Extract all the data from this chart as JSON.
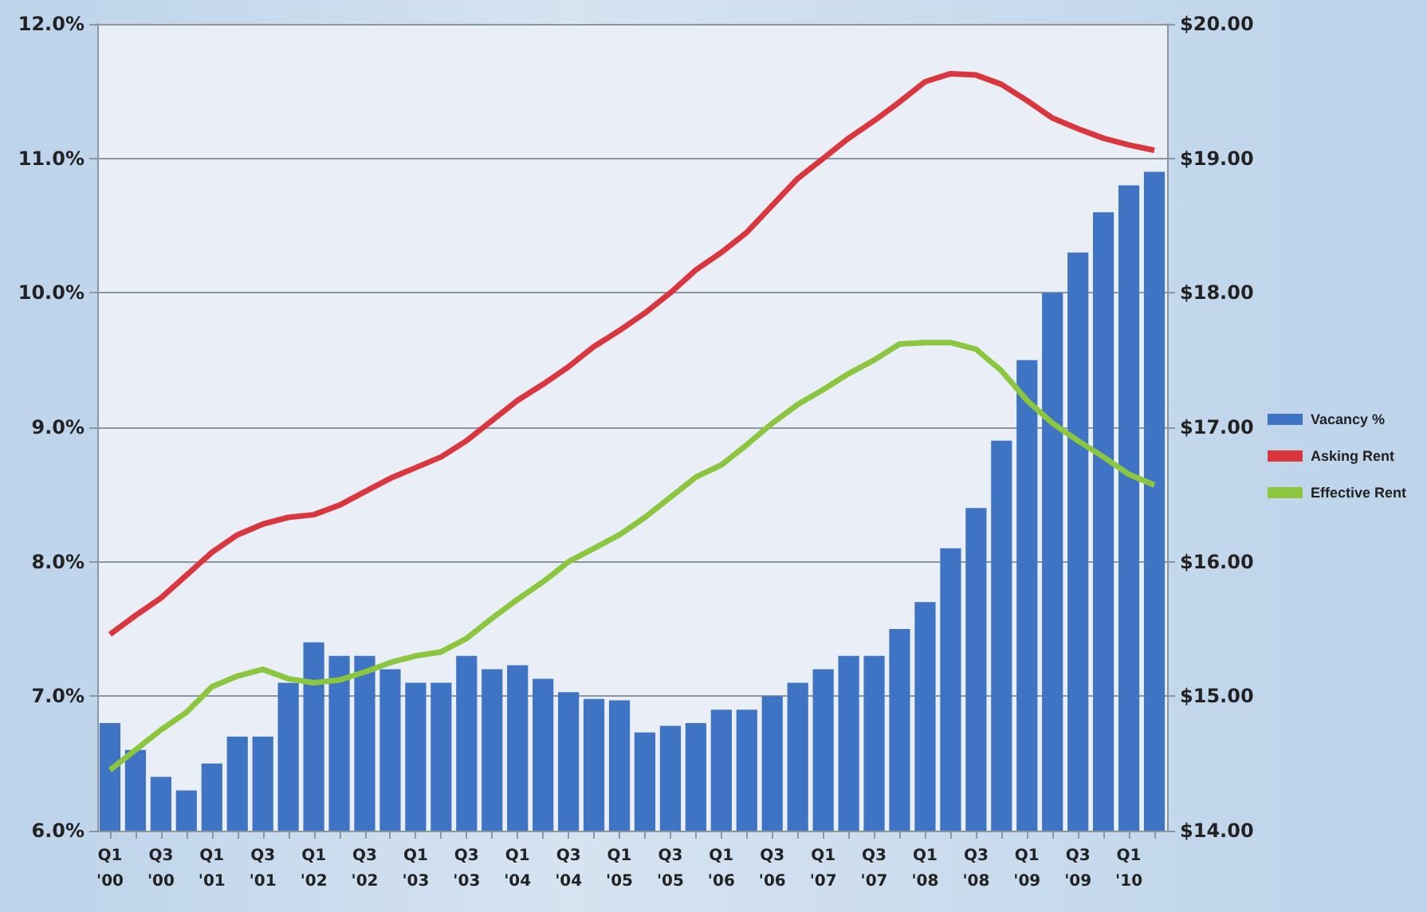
{
  "chart_data": {
    "type": "bar",
    "categories": [
      "Q1\n'00",
      null,
      "Q3\n'00",
      null,
      "Q1\n'01",
      null,
      "Q3\n'01",
      null,
      "Q1\n'02",
      null,
      "Q3\n'02",
      null,
      "Q1\n'03",
      null,
      "Q3\n'03",
      null,
      "Q1\n'04",
      null,
      "Q3\n'04",
      null,
      "Q1\n'05",
      null,
      "Q3\n'05",
      null,
      "Q1\n'06",
      null,
      "Q3\n'06",
      null,
      "Q1\n'07",
      null,
      "Q3\n'07",
      null,
      "Q1\n'08",
      null,
      "Q3\n'08",
      null,
      "Q1\n'09",
      null,
      "Q3\n'09",
      null,
      "Q1\n'10",
      null
    ],
    "series": [
      {
        "name": "Vacancy %",
        "color": "#3f74c4",
        "values": [
          6.8,
          6.6,
          6.4,
          6.3,
          6.5,
          6.7,
          6.7,
          7.1,
          7.4,
          7.3,
          7.3,
          7.2,
          7.1,
          7.1,
          7.3,
          7.2,
          7.23,
          7.13,
          7.03,
          6.98,
          6.97,
          6.73,
          6.78,
          6.8,
          6.9,
          6.9,
          7.0,
          7.1,
          7.2,
          7.3,
          7.3,
          7.5,
          7.7,
          8.1,
          8.4,
          8.9,
          9.5,
          10.0,
          10.3,
          10.6,
          10.8,
          10.9
        ]
      },
      {
        "name": "Asking Rent",
        "type": "line",
        "axis": "y2",
        "color": "#d9363e",
        "values": [
          15.46,
          15.6,
          15.73,
          15.9,
          16.07,
          16.2,
          16.28,
          16.33,
          16.35,
          16.42,
          16.52,
          16.62,
          16.7,
          16.78,
          16.9,
          17.05,
          17.2,
          17.32,
          17.45,
          17.6,
          17.72,
          17.85,
          18.0,
          18.17,
          18.3,
          18.45,
          18.65,
          18.85,
          19.0,
          19.15,
          19.28,
          19.42,
          19.57,
          19.63,
          19.62,
          19.55,
          19.43,
          19.3,
          19.22,
          19.15,
          19.1,
          19.06
        ]
      },
      {
        "name": "Effective Rent",
        "type": "line",
        "axis": "y2",
        "color": "#8cc63f",
        "values": [
          14.45,
          14.6,
          14.75,
          14.88,
          15.07,
          15.15,
          15.2,
          15.13,
          15.1,
          15.12,
          15.18,
          15.25,
          15.3,
          15.33,
          15.43,
          15.58,
          15.72,
          15.85,
          16.0,
          16.1,
          16.2,
          16.33,
          16.48,
          16.63,
          16.72,
          16.87,
          17.03,
          17.17,
          17.28,
          17.4,
          17.5,
          17.62,
          17.63,
          17.63,
          17.58,
          17.42,
          17.2,
          17.03,
          16.9,
          16.78,
          16.65,
          16.57
        ]
      }
    ],
    "ylim": [
      6,
      12
    ],
    "yticks": [
      {
        "value": 6,
        "label": "6.0%"
      },
      {
        "value": 7,
        "label": "7.0%"
      },
      {
        "value": 8,
        "label": "8.0%"
      },
      {
        "value": 9,
        "label": "9.0%"
      },
      {
        "value": 10,
        "label": "10.0%"
      },
      {
        "value": 11,
        "label": "11.0%"
      },
      {
        "value": 12,
        "label": "12.0%"
      }
    ],
    "y2lim": [
      14,
      20
    ],
    "y2ticks": [
      {
        "value": 14,
        "label": "$14.00"
      },
      {
        "value": 15,
        "label": "$15.00"
      },
      {
        "value": 16,
        "label": "$16.00"
      },
      {
        "value": 17,
        "label": "$17.00"
      },
      {
        "value": 18,
        "label": "$18.00"
      },
      {
        "value": 19,
        "label": "$19.00"
      },
      {
        "value": 20,
        "label": "$20.00"
      }
    ],
    "grid": "y",
    "legend": "right",
    "marker": "none"
  }
}
